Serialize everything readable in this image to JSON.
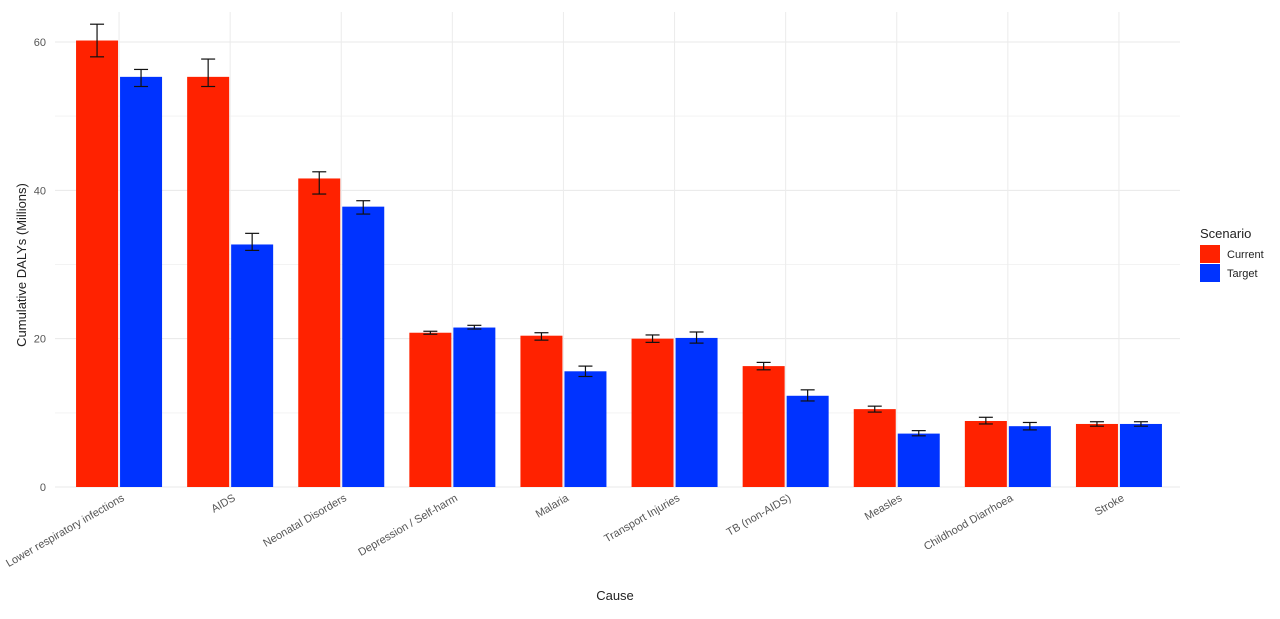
{
  "chart_data": {
    "type": "bar",
    "title": "",
    "xlabel": "Cause",
    "ylabel": "Cumulative DALYs (Millions)",
    "ylim": [
      0,
      60
    ],
    "yticks": [
      0,
      20,
      40,
      60
    ],
    "grid": true,
    "legend": {
      "title": "Scenario",
      "placement": "right"
    },
    "categories": [
      "Lower respiratory infections",
      "AIDS",
      "Neonatal Disorders",
      "Depression / Self-harm",
      "Malaria",
      "Transport Injuries",
      "TB (non-AIDS)",
      "Measles",
      "Childhood Diarrhoea",
      "Stroke"
    ],
    "series": [
      {
        "name": "Current",
        "color": "#ff2200",
        "values": [
          60.2,
          55.3,
          41.6,
          20.8,
          20.4,
          20.0,
          16.3,
          10.5,
          8.9,
          8.5
        ],
        "error_low": [
          58.0,
          54.0,
          39.5,
          20.6,
          19.8,
          19.5,
          15.8,
          10.1,
          8.5,
          8.2
        ],
        "error_high": [
          62.4,
          57.7,
          42.5,
          21.0,
          20.8,
          20.5,
          16.8,
          10.9,
          9.4,
          8.8
        ]
      },
      {
        "name": "Target",
        "color": "#0033ff",
        "values": [
          55.3,
          32.7,
          37.8,
          21.5,
          15.6,
          20.1,
          12.3,
          7.2,
          8.2,
          8.5
        ],
        "error_low": [
          54.0,
          31.9,
          36.8,
          21.3,
          14.9,
          19.4,
          11.6,
          6.9,
          7.7,
          8.2
        ],
        "error_high": [
          56.3,
          34.2,
          38.6,
          21.8,
          16.3,
          20.9,
          13.1,
          7.6,
          8.7,
          8.8
        ]
      }
    ]
  }
}
